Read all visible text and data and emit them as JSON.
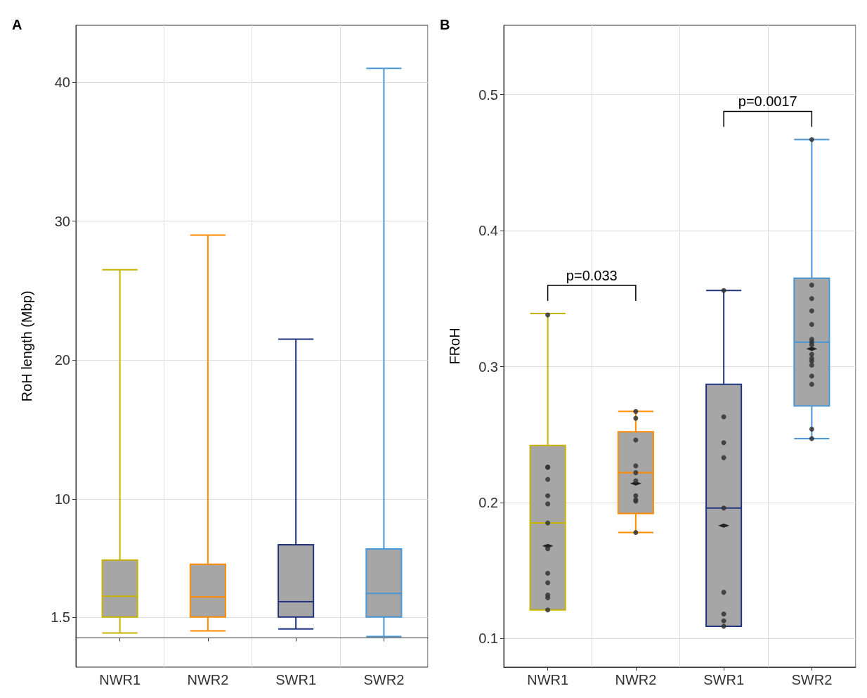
{
  "chart_data": [
    {
      "type": "box",
      "title": "A",
      "ylabel": "RoH length (Mbp)",
      "categories": [
        "NWR1",
        "NWR2",
        "SWR1",
        "SWR2"
      ],
      "colors": [
        "#c8b400",
        "#ff8c00",
        "#22367f",
        "#4a97d6"
      ],
      "boxes": [
        {
          "low": 0.36,
          "q1": 1.5,
          "median": 3.0,
          "q3": 5.6,
          "high": 26.5
        },
        {
          "low": 0.5,
          "q1": 1.5,
          "median": 2.95,
          "q3": 5.3,
          "high": 29.0
        },
        {
          "low": 0.65,
          "q1": 1.5,
          "median": 2.6,
          "q3": 6.7,
          "high": 21.5
        },
        {
          "low": 0.1,
          "q1": 1.5,
          "median": 3.2,
          "q3": 6.4,
          "high": 41.0
        }
      ],
      "ylim": [
        -2.1,
        44.1
      ],
      "yticks": [
        1.5,
        10,
        20,
        30,
        40
      ],
      "grid": true
    },
    {
      "type": "box",
      "title": "B",
      "ylabel": "FRoH",
      "categories": [
        "NWR1",
        "NWR2",
        "SWR1",
        "SWR2"
      ],
      "colors": [
        "#c8b400",
        "#ff8c00",
        "#22367f",
        "#4a97d6"
      ],
      "boxes": [
        {
          "low": 0.121,
          "q1": 0.121,
          "median": 0.185,
          "q3": 0.242,
          "high": 0.339,
          "mean": 0.168
        },
        {
          "low": 0.178,
          "q1": 0.192,
          "median": 0.222,
          "q3": 0.252,
          "high": 0.267,
          "mean": 0.214
        },
        {
          "low": 0.109,
          "q1": 0.109,
          "median": 0.196,
          "q3": 0.287,
          "high": 0.356,
          "mean": 0.183
        },
        {
          "low": 0.247,
          "q1": 0.271,
          "median": 0.318,
          "q3": 0.365,
          "high": 0.467,
          "mean": 0.313
        }
      ],
      "series": [
        {
          "type": "scatter",
          "color": "#333333",
          "x": [
            "NWR1",
            "NWR1",
            "NWR1",
            "NWR1",
            "NWR1",
            "NWR1",
            "NWR1",
            "NWR1",
            "NWR1",
            "NWR1",
            "NWR1",
            "NWR1",
            "NWR1",
            "NWR1",
            "NWR2",
            "NWR2",
            "NWR2",
            "NWR2",
            "NWR2",
            "NWR2",
            "NWR2",
            "NWR2",
            "NWR2",
            "NWR2",
            "SWR1",
            "SWR1",
            "SWR1",
            "SWR1",
            "SWR1",
            "SWR1",
            "SWR1",
            "SWR1",
            "SWR1",
            "SWR2",
            "SWR2",
            "SWR2",
            "SWR2",
            "SWR2",
            "SWR2",
            "SWR2",
            "SWR2",
            "SWR2",
            "SWR2",
            "SWR2",
            "SWR2",
            "SWR2",
            "SWR2",
            "SWR2",
            "SWR2"
          ],
          "values": [
            0.338,
            0.226,
            0.226,
            0.217,
            0.205,
            0.199,
            0.185,
            null,
            0.166,
            0.148,
            0.141,
            0.132,
            0.13,
            0.121,
            0.267,
            0.262,
            0.246,
            0.227,
            0.222,
            0.216,
            0.205,
            0.202,
            0.201,
            0.178,
            0.356,
            0.263,
            0.244,
            0.233,
            0.196,
            0.134,
            0.118,
            0.113,
            0.109,
            0.467,
            0.36,
            0.35,
            0.341,
            0.331,
            0.32,
            0.318,
            0.316,
            0.309,
            0.306,
            0.304,
            0.301,
            0.293,
            0.287,
            0.254,
            0.247
          ]
        }
      ],
      "annotations": [
        "p=0.033",
        "p=0.0017"
      ],
      "ylim": [
        0.079,
        0.551
      ],
      "yticks": [
        0.1,
        0.2,
        0.3,
        0.4,
        0.5
      ],
      "grid": true
    }
  ]
}
